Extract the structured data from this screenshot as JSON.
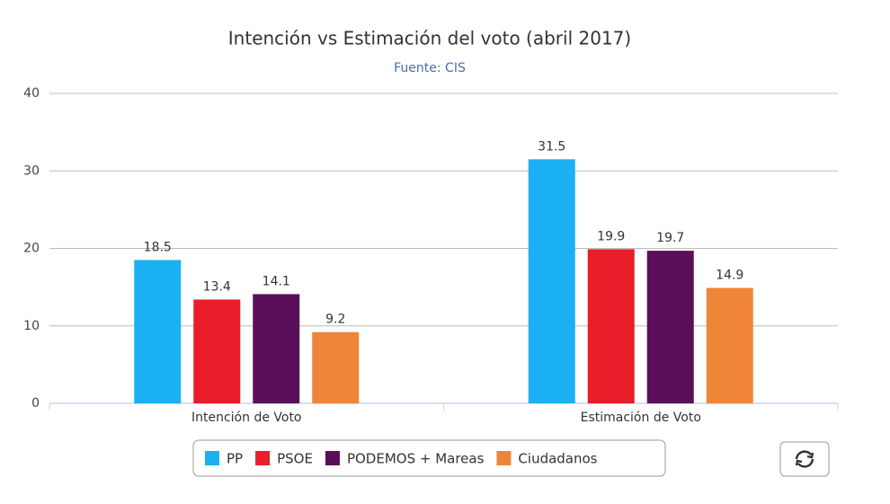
{
  "chart_data": {
    "type": "bar",
    "title": "Intención vs Estimación del voto (abril 2017)",
    "subtitle": "Fuente: CIS",
    "categories": [
      "Intención de Voto",
      "Estimación de Voto"
    ],
    "series": [
      {
        "name": "PP",
        "color": "#1ab0f2",
        "values": [
          18.5,
          31.5
        ]
      },
      {
        "name": "PSOE",
        "color": "#e81e2a",
        "values": [
          13.4,
          19.9
        ]
      },
      {
        "name": "PODEMOS + Mareas",
        "color": "#5b0f5b",
        "values": [
          14.1,
          19.7
        ]
      },
      {
        "name": "Ciudadanos",
        "color": "#ef8538",
        "values": [
          9.2,
          14.9
        ]
      }
    ],
    "ylim": [
      0,
      40
    ],
    "yticks": [
      0,
      10,
      20,
      30,
      40
    ],
    "grid": true
  }
}
